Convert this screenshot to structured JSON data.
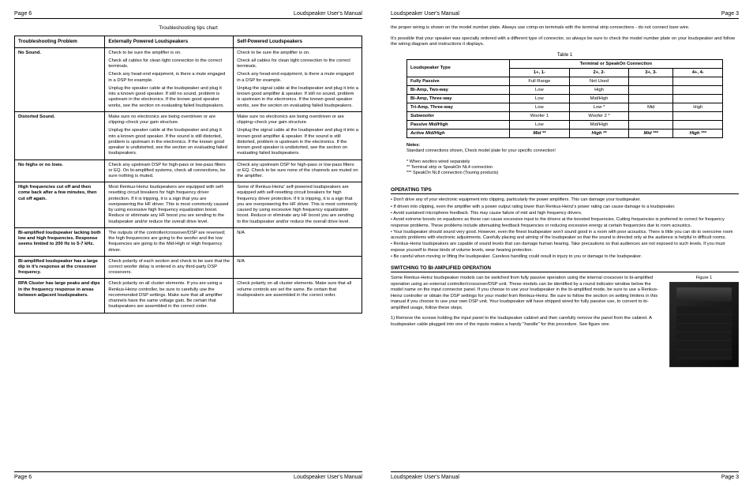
{
  "left": {
    "header": {
      "page": "Page 6",
      "title": "Loudspeaker User's Manual"
    },
    "footer": {
      "page": "Page 6",
      "title": "Loudspeaker User's Manual"
    },
    "chartTitle": "Troubleshooting tips chart",
    "ts": {
      "heads": [
        "Troubleshooting Problem",
        "Externally Powered Loudspeakers",
        "Self-Powered Loudspeakers"
      ],
      "rows": [
        {
          "problem": "No Sound.",
          "ext": [
            "Check to be sure the amplifier is on.",
            "Check all cables for clean tight connection to the correct terminals.",
            "Check any head-end equipment, is there a mute engaged in a DSP for example.",
            "Unplug the speaker cable at the loudspeaker and plug it into a known good speaker. If still no sound, problem is upstream in the electronics. If the known good speaker works, see the section on evaluating failed loudspeakers."
          ],
          "self": [
            "Check to be sure the amplifier is on.",
            "Check all cables for clean tight connection to the correct terminals.",
            "Check any head-end equipment, is there a mute engaged in a DSP for example.",
            "Unplug the signal cable at the loudspeaker and plug it into a known good amplifier & speaker. If still no sound, problem is upstream in the electronics. If the known good speaker works, see the section on evaluating failed loudspeakers."
          ]
        },
        {
          "problem": "Distorted Sound.",
          "ext": [
            "Make sure no electronics are being overdriven or are clipping–check your gain structure.",
            "Unplug the speaker cable at the loudspeaker and plug it into a known good speaker. If the sound is still distorted, problem is upstream in the electronics. If the known good speaker is undistorted, see the section on evaluating failed loudspeakers."
          ],
          "self": [
            "Make sure no electronics are being overdriven or are clipping–check your gain structure.",
            "Unplug the signal cable at the loudspeaker and plug it into a known good amplifier & speaker. If the sound is still distorted, problem is upstream in the electronics. If the known good speaker is undistorted, see the section on evaluating failed loudspeakers."
          ]
        },
        {
          "problem": "No highs or no lows.",
          "ext": [
            "Check any upstream DSP for high-pass or low-pass filters or EQ. On bi-amplified systems, check all connections, be sure nothing is muted."
          ],
          "self": [
            "Check any upstream DSP for high-pass or low-pass filters or EQ. Check to be sure none of the channels are muted on the amplifier."
          ]
        },
        {
          "problem": "High frequencies cut off and then come back after a few minutes, then cut off again.",
          "ext": [
            "Most Renkus-Heinz loudspeakers are equipped with self-resetting circuit breakers for high frequency driver protection. If it is tripping, it is a sign that you are overpowering the HF driver. This is most commonly caused by using excessive high frequency equalization boost. Reduce or eliminate any HF boost you are sending to the loudspeaker and/or reduce the overall drive level."
          ],
          "self": [
            "Some of Renkus-Heinz' self-powered loudspeakers are equipped with self-resetting circuit breakers for high frequency driver protection. If it is tripping, it is a sign that you are overpowering the HF driver. This is most commonly caused by using excessive high frequency equalization boost. Reduce or eliminate any HF boost you are sending to the loudspeaker and/or reduce the overall drive level."
          ]
        },
        {
          "problem": "Bi-amplified loudspeaker lacking both low and high frequencies. Response seems limited to 200 Hz to 5-7 kHz.",
          "ext": [
            "The outputs of the controller/crossover/DSP are reversed; the high frequencies are going to the woofer and the low frequencies are going to the Mid-High or High frequency driver."
          ],
          "self": [
            "N/A"
          ]
        },
        {
          "problem": "Bi-amplified loudspeaker has a large dip in it's response at the crossover frequency.",
          "ext": [
            "Check polarity of each section and check to be sure that the correct woofer delay is entered in any third-party DSP crossovers."
          ],
          "self": [
            "N/A"
          ]
        },
        {
          "problem": "RPA Cluster has large peaks and dips in the frequency response in areas between adjacent loudspeakers.",
          "ext": [
            "Check polarity on all cluster elements. If you are using a Renkus-Heinz controller, be sure to carefully use the recommended DSP settings. Make sure that all amplifier channels have the same voltage gain. Be certain that loudspeakers are assembled in the correct order."
          ],
          "self": [
            "Check polarity on all cluster elements. Make sure that all volume controls are set the same. Be certain that loudspeakers are assembled in the correct order."
          ]
        }
      ]
    }
  },
  "right": {
    "header": {
      "title": "Loudspeaker User's Manual",
      "page": "Page 3"
    },
    "footer": {
      "title": "Loudspeaker User's Manual",
      "page": "Page 3"
    },
    "introA": "the proper wiring is shown on the model number plate.  Always use crimp-on terminals with the terminal strip connections - do not connect bare wire.",
    "introB": "It's possible that your speaker was specially ordered with a different type of connector, so always be sure to check the model number plate on your loudspeaker and follow the wiring diagram and instructions it displays.",
    "tableCaption": "Table 1",
    "conn": {
      "groupHead": "Terminal or SpeakOn Connection",
      "typeHead": "Loudspeaker Type",
      "cols": [
        "1+, 1-",
        "2+, 2-",
        "3+, 3-",
        "4+, 4-"
      ],
      "rows": [
        {
          "t": "Fully Passive",
          "c": [
            "Full Range",
            "Not Used",
            "",
            ""
          ]
        },
        {
          "t": "Bi-Amp, Two-way",
          "c": [
            "Low",
            "High",
            "",
            ""
          ]
        },
        {
          "t": "Bi-Amp, Three-way",
          "c": [
            "Low",
            "Mid/High",
            "",
            ""
          ]
        },
        {
          "t": "Tri-Amp, Three-way",
          "c": [
            "Low",
            "Low *",
            "Mid",
            "High"
          ]
        },
        {
          "t": "Subwoofer",
          "c": [
            "Woofer 1",
            "Woofer 2 *",
            "",
            ""
          ]
        },
        {
          "t": "Passive Mid/High",
          "c": [
            "Low",
            "Mid/High",
            "",
            ""
          ]
        },
        {
          "t": "Active Mid/High",
          "c": [
            "Mid **",
            "High **",
            "Mid ***",
            "High ***"
          ],
          "active": true
        }
      ]
    },
    "notesHead": "Notes:",
    "notesLine": "Standard connections shown, Check model plate for your specific connection!",
    "footnotes": [
      "* When woofers wired separately",
      "** Terminal strip or SpeakOn NL4 connection",
      "*** SpeakOn NL8 connection (Touring products)"
    ],
    "opHead": "OPERATING TIPS",
    "tips": [
      "• Don't drive any of your electronic equipment into clipping, particularly the power amplifiers. This can damage your loudspeaker.",
      "• If driven into clipping, even the amplifier with a power output rating lower than Renkus-Heinz's power rating can cause damage to a loudspeaker.",
      "• Avoid sustained microphone feedback. This may cause failure of mid and high frequency drivers.",
      "• Avoid extreme boosts on equalizers as these can cause excessive input to the drivers at the boosted frequencies. Cutting frequencies is preferred to correct for frequency response problems. These problems include attenuating feedback frequencies or reducing excessive energy at certain frequencies due to room acoustics.",
      "• Your loudspeaker should sound very good. However, even the finest loudspeaker won't sound good in a room with poor acoustics. There is little you can do to overcome room acoustic problems with electronic adjustments. Carefully placing and aiming of the loudspeaker so that the sound is directed only at the audience is helpful in difficult rooms.",
      "• Renkus-Heinz loudspeakers are capable of sound levels that can damage human hearing. Take precautions so that audiences are not exposed to such levels. If you must expose yourself to these kinds of volume levels, wear hearing protection.",
      "• Be careful when moving or lifting the loudspeaker. Careless handling could result in injury to you or damage to the loudspeaker."
    ],
    "biHead": "SWITCHING TO BI-AMPLIFIED OPERATION",
    "biA": "Some Renkus-Heinz loudspeaker models can be switched from fully passive operation using the internal crossover to bi-amplified operation using an external controller/crossover/DSP unit. These models can be identified by a round indicator window below the model name on the input connector panel. If you choose to use your loudspeaker in the bi-amplified mode, be sure to use a Renkus-Heinz controller or obtain the DSP settings for your model from Renkus-Heinz. Be sure to follow the section on setting limiters in this manual if you choose to use your own DSP unit. Your loudspeaker will have shipped wired for fully passive use, to convert to bi-amplified usage, follow these steps.",
    "biB": "1) Remove the screws holding the input panel to the loudspeaker cabinet and then carefully remove the panel from the cabinet. A loudspeaker cable plugged into one of the inputs makes a handy \"handle\" for this procedure. See figure one.",
    "figCap": "Figure 1"
  }
}
